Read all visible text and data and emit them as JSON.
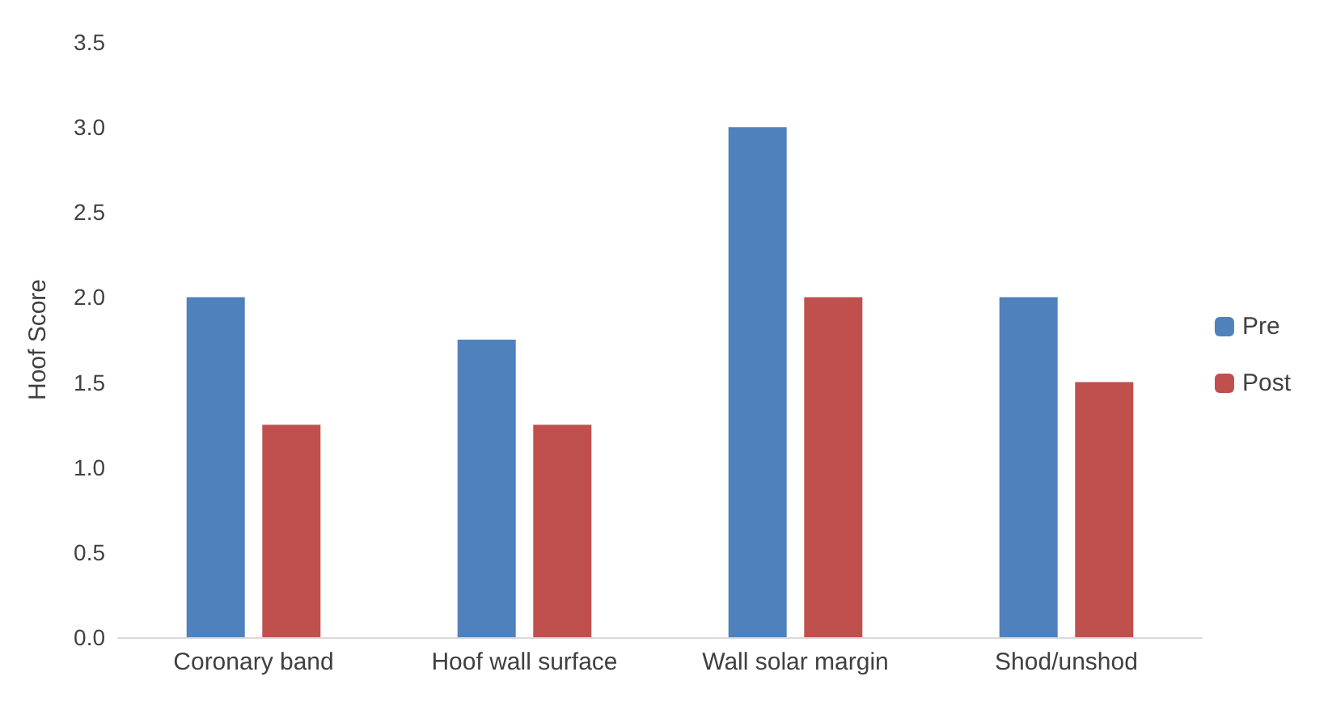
{
  "chart_data": {
    "type": "bar",
    "ylabel": "Hoof Score",
    "categories": [
      "Coronary band",
      "Hoof wall surface",
      "Wall solar margin",
      "Shod/unshod"
    ],
    "series": [
      {
        "name": "Pre",
        "color": "#4f81bd",
        "values": [
          2.0,
          1.75,
          3.0,
          2.0
        ]
      },
      {
        "name": "Post",
        "color": "#c0504d",
        "values": [
          1.25,
          1.25,
          2.0,
          1.5
        ]
      }
    ],
    "ylim": [
      0,
      3.5
    ],
    "yticks": [
      {
        "value": 0,
        "label": "0.0"
      },
      0.5,
      {
        "value": 1,
        "label": "1.0"
      },
      1.5,
      {
        "value": 2,
        "label": "2.0"
      },
      2.5,
      {
        "value": 3,
        "label": "3.0"
      },
      3.5
    ],
    "grid": false,
    "legend": "right"
  }
}
